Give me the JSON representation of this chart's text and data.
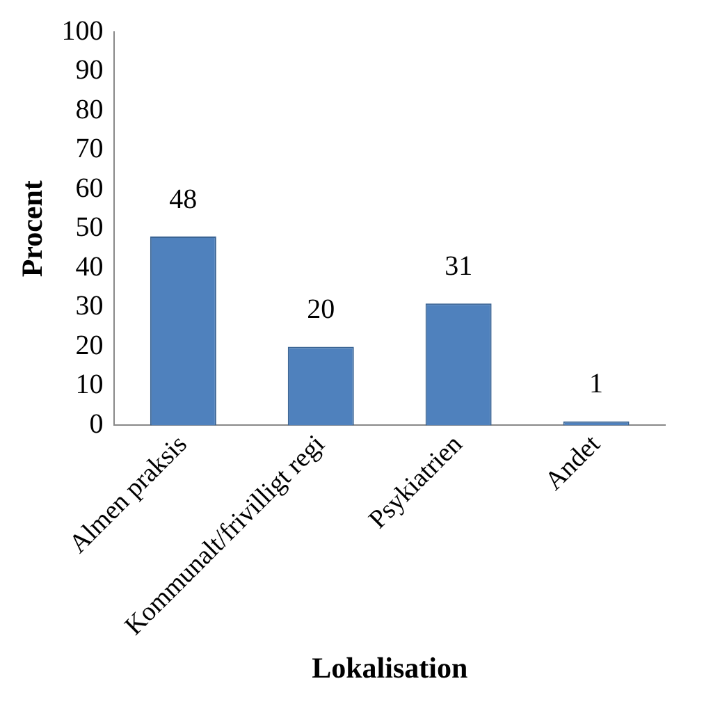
{
  "chart_data": {
    "type": "bar",
    "xlabel": "Lokalisation",
    "ylabel": "Procent",
    "categories": [
      "Almen praksis",
      "Kommunalt/frivilligt regi",
      "Psykiatrien",
      "Andet"
    ],
    "values": [
      48,
      20,
      31,
      1
    ],
    "color": "#4f81bd",
    "ylim": [
      0,
      100
    ],
    "yticks": [
      0,
      10,
      20,
      30,
      40,
      50,
      60,
      70,
      80,
      90,
      100
    ],
    "grid": false,
    "legend": false,
    "data_labels": true
  }
}
